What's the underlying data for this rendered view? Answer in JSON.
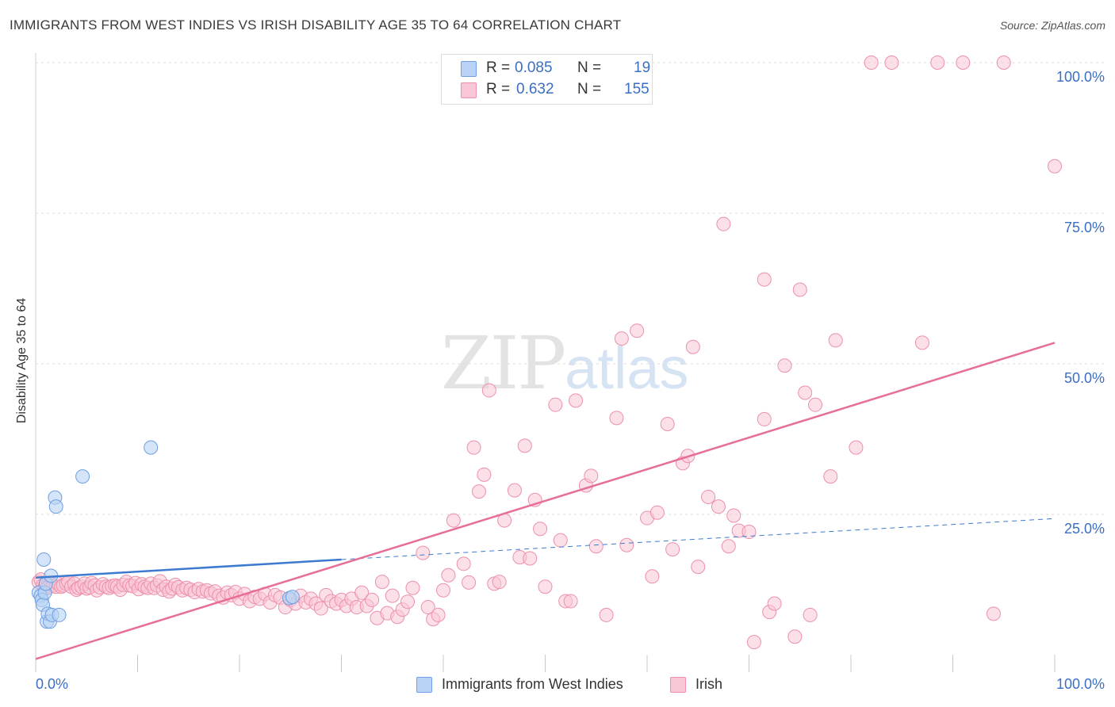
{
  "title": "IMMIGRANTS FROM WEST INDIES VS IRISH DISABILITY AGE 35 TO 64 CORRELATION CHART",
  "source": "Source: ZipAtlas.com",
  "watermark": {
    "zip": "ZIP",
    "atlas": "atlas"
  },
  "legend_top": {
    "rows": [
      {
        "r_label": "R =",
        "r_value": "0.085",
        "n_label": "N =",
        "n_value": "19",
        "color": "#b8d3f5"
      },
      {
        "r_label": "R =",
        "r_value": "0.632",
        "n_label": "N =",
        "n_value": "155",
        "color": "#f9c6d5"
      }
    ]
  },
  "legend_bottom": [
    {
      "label": "Immigrants from West Indies",
      "color": "#b8d3f5"
    },
    {
      "label": "Irish",
      "color": "#f9c6d5"
    }
  ],
  "colors": {
    "blue_fill": "#b8d3f5",
    "blue_stroke": "#6f9fe0",
    "blue_line": "#3d7ad0",
    "pink_fill": "#f9c6d5",
    "pink_stroke": "#ec90ad",
    "pink_line": "#e66e97",
    "grid": "#dcdcdc",
    "axis_text": "#3a6fc4"
  },
  "chart_data": {
    "type": "scatter",
    "title": "IMMIGRANTS FROM WEST INDIES VS IRISH DISABILITY AGE 35 TO 64 CORRELATION CHART",
    "xlabel": "",
    "ylabel": "Disability Age 35 to 64",
    "xlim": [
      0,
      100
    ],
    "ylim": [
      0,
      100
    ],
    "x_tick_labels": [
      "0.0%",
      "100.0%"
    ],
    "y_tick_labels": [
      {
        "value": 25,
        "label": "25.0%"
      },
      {
        "value": 50,
        "label": "50.0%"
      },
      {
        "value": 75,
        "label": "75.0%"
      },
      {
        "value": 100,
        "label": "100.0%"
      }
    ],
    "series": [
      {
        "name": "Immigrants from West Indies",
        "R": 0.085,
        "N": 19,
        "points": [
          [
            0.3,
            12.0
          ],
          [
            0.5,
            11.5
          ],
          [
            0.6,
            10.8
          ],
          [
            0.7,
            10.0
          ],
          [
            0.8,
            17.5
          ],
          [
            0.9,
            12.0
          ],
          [
            1.0,
            13.5
          ],
          [
            1.1,
            7.2
          ],
          [
            1.2,
            8.5
          ],
          [
            1.4,
            7.2
          ],
          [
            1.5,
            14.8
          ],
          [
            1.6,
            8.3
          ],
          [
            1.9,
            27.8
          ],
          [
            2.0,
            26.3
          ],
          [
            2.3,
            8.3
          ],
          [
            4.6,
            31.3
          ],
          [
            11.3,
            36.1
          ],
          [
            24.9,
            11.1
          ],
          [
            25.2,
            11.3
          ]
        ],
        "trend": {
          "x_start": 0,
          "y_start": 14.5,
          "x_solid_end": 30,
          "y_solid_end": 17.5,
          "x_end": 100,
          "y_end": 24.3
        }
      },
      {
        "name": "Irish",
        "R": 0.632,
        "N": 155,
        "points": [
          [
            0.3,
            13.8
          ],
          [
            0.5,
            14.2
          ],
          [
            0.7,
            13.2
          ],
          [
            0.9,
            13.0
          ],
          [
            1.1,
            12.9
          ],
          [
            1.2,
            12.8
          ],
          [
            1.5,
            13.5
          ],
          [
            1.7,
            13.2
          ],
          [
            2.0,
            13.0
          ],
          [
            2.2,
            13.5
          ],
          [
            2.5,
            13.0
          ],
          [
            2.7,
            13.2
          ],
          [
            3.0,
            13.5
          ],
          [
            3.2,
            13.8
          ],
          [
            3.5,
            13.0
          ],
          [
            3.8,
            13.5
          ],
          [
            4.0,
            12.5
          ],
          [
            4.2,
            12.8
          ],
          [
            4.5,
            13.0
          ],
          [
            4.8,
            13.5
          ],
          [
            5.0,
            12.7
          ],
          [
            5.3,
            12.9
          ],
          [
            5.5,
            13.6
          ],
          [
            5.8,
            13.2
          ],
          [
            6.0,
            12.4
          ],
          [
            6.3,
            12.9
          ],
          [
            6.6,
            13.4
          ],
          [
            6.9,
            13.0
          ],
          [
            7.2,
            12.8
          ],
          [
            7.5,
            13.1
          ],
          [
            7.8,
            13.2
          ],
          [
            8.0,
            13.0
          ],
          [
            8.3,
            12.5
          ],
          [
            8.6,
            13.3
          ],
          [
            8.9,
            13.8
          ],
          [
            9.2,
            13.2
          ],
          [
            9.5,
            13.1
          ],
          [
            9.8,
            13.6
          ],
          [
            10.1,
            12.6
          ],
          [
            10.4,
            13.4
          ],
          [
            10.7,
            13.0
          ],
          [
            11.0,
            12.8
          ],
          [
            11.3,
            13.5
          ],
          [
            11.6,
            12.8
          ],
          [
            11.9,
            13.2
          ],
          [
            12.2,
            13.9
          ],
          [
            12.5,
            12.5
          ],
          [
            12.8,
            13.0
          ],
          [
            13.1,
            12.2
          ],
          [
            13.4,
            12.7
          ],
          [
            13.7,
            13.3
          ],
          [
            14.0,
            12.9
          ],
          [
            14.4,
            12.4
          ],
          [
            14.8,
            12.8
          ],
          [
            15.2,
            12.5
          ],
          [
            15.6,
            12.1
          ],
          [
            16.0,
            12.6
          ],
          [
            16.4,
            12.2
          ],
          [
            16.8,
            12.4
          ],
          [
            17.2,
            11.9
          ],
          [
            17.6,
            12.2
          ],
          [
            18.0,
            11.5
          ],
          [
            18.4,
            11.2
          ],
          [
            18.8,
            12.0
          ],
          [
            19.2,
            11.6
          ],
          [
            19.6,
            12.1
          ],
          [
            20.0,
            11.0
          ],
          [
            20.5,
            11.8
          ],
          [
            21.0,
            10.6
          ],
          [
            21.5,
            11.3
          ],
          [
            22.0,
            11.0
          ],
          [
            22.5,
            11.8
          ],
          [
            23.0,
            10.4
          ],
          [
            23.5,
            11.6
          ],
          [
            24.0,
            11.2
          ],
          [
            24.5,
            9.6
          ],
          [
            25.0,
            10.8
          ],
          [
            25.5,
            10.2
          ],
          [
            26.0,
            11.5
          ],
          [
            26.5,
            10.4
          ],
          [
            27.0,
            11.0
          ],
          [
            27.5,
            10.2
          ],
          [
            28.0,
            9.4
          ],
          [
            28.5,
            11.6
          ],
          [
            29.0,
            10.6
          ],
          [
            29.5,
            10.2
          ],
          [
            30.0,
            10.8
          ],
          [
            30.5,
            9.8
          ],
          [
            31.0,
            11.0
          ],
          [
            31.5,
            9.6
          ],
          [
            32.0,
            12.0
          ],
          [
            32.5,
            9.8
          ],
          [
            33.0,
            10.8
          ],
          [
            33.5,
            7.8
          ],
          [
            34.0,
            13.8
          ],
          [
            34.5,
            8.6
          ],
          [
            35.0,
            11.5
          ],
          [
            35.5,
            8.0
          ],
          [
            36.0,
            9.2
          ],
          [
            36.5,
            10.5
          ],
          [
            37.0,
            12.8
          ],
          [
            38.0,
            18.6
          ],
          [
            38.5,
            9.6
          ],
          [
            39.0,
            7.6
          ],
          [
            39.5,
            8.3
          ],
          [
            40.0,
            12.4
          ],
          [
            40.5,
            14.9
          ],
          [
            41.0,
            24.0
          ],
          [
            42.0,
            16.8
          ],
          [
            42.5,
            13.7
          ],
          [
            43.0,
            36.1
          ],
          [
            43.5,
            28.8
          ],
          [
            44.0,
            31.6
          ],
          [
            44.5,
            45.6
          ],
          [
            45.0,
            13.5
          ],
          [
            45.5,
            13.8
          ],
          [
            46.0,
            24.0
          ],
          [
            47.0,
            29.0
          ],
          [
            47.5,
            17.9
          ],
          [
            48.0,
            36.4
          ],
          [
            48.5,
            17.7
          ],
          [
            49.0,
            27.4
          ],
          [
            49.5,
            22.6
          ],
          [
            50.0,
            13.0
          ],
          [
            51.0,
            43.2
          ],
          [
            51.5,
            20.7
          ],
          [
            52.0,
            10.6
          ],
          [
            52.5,
            10.6
          ],
          [
            53.0,
            43.9
          ],
          [
            54.0,
            29.8
          ],
          [
            54.5,
            31.4
          ],
          [
            55.0,
            19.7
          ],
          [
            56.0,
            8.3
          ],
          [
            57.0,
            41.0
          ],
          [
            57.5,
            54.2
          ],
          [
            58.0,
            19.9
          ],
          [
            59.0,
            55.5
          ],
          [
            60.0,
            24.4
          ],
          [
            60.5,
            14.7
          ],
          [
            61.0,
            25.3
          ],
          [
            62.0,
            40.0
          ],
          [
            62.5,
            19.2
          ],
          [
            63.5,
            33.5
          ],
          [
            64.0,
            34.7
          ],
          [
            64.5,
            52.8
          ],
          [
            65.0,
            16.3
          ],
          [
            66.0,
            27.9
          ],
          [
            67.0,
            26.3
          ],
          [
            67.5,
            73.2
          ],
          [
            68.0,
            19.7
          ],
          [
            68.5,
            24.8
          ]
        ],
        "points_extra": [
          [
            69.0,
            22.3
          ],
          [
            70.0,
            22.1
          ],
          [
            70.5,
            3.8
          ],
          [
            71.5,
            40.8
          ],
          [
            71.5,
            64.0
          ],
          [
            72.0,
            8.8
          ],
          [
            72.5,
            10.2
          ],
          [
            73.5,
            49.7
          ],
          [
            74.5,
            4.7
          ],
          [
            75.0,
            62.3
          ],
          [
            75.5,
            45.2
          ],
          [
            76.0,
            8.3
          ],
          [
            76.5,
            43.2
          ],
          [
            78.0,
            31.3
          ],
          [
            78.5,
            53.9
          ],
          [
            80.5,
            36.1
          ],
          [
            82.0,
            100.0
          ],
          [
            84.0,
            100.0
          ],
          [
            87.0,
            53.5
          ],
          [
            88.5,
            100.0
          ],
          [
            91.0,
            100.0
          ],
          [
            94.0,
            8.5
          ],
          [
            95.0,
            100.0
          ],
          [
            100.0,
            82.8
          ]
        ],
        "trend": {
          "x_start": 0,
          "y_start": 1.0,
          "x_end": 100,
          "y_end": 53.5
        }
      }
    ],
    "legend_position": "top-center"
  }
}
